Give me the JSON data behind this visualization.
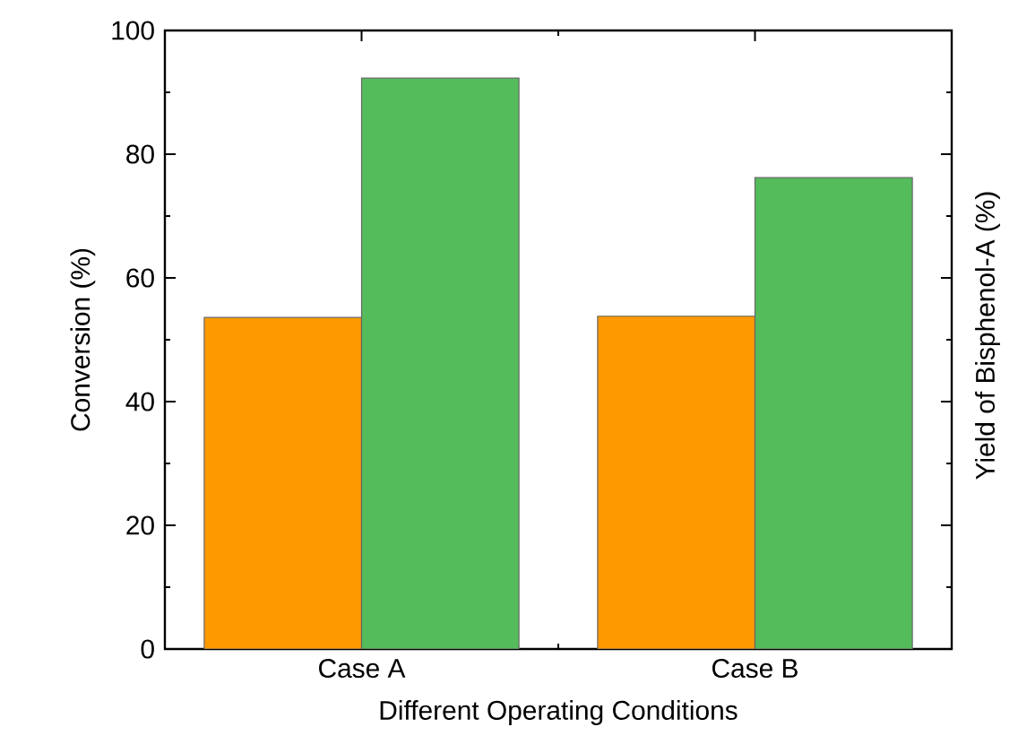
{
  "chart_data": {
    "type": "bar",
    "categories": [
      "Case A",
      "Case B"
    ],
    "xlabel": "Different Operating Conditions",
    "ylabel": "Conversion (%)",
    "y2label": "Yield of Bisphenol-A (%)",
    "series": [
      {
        "color": "#ff9900",
        "values": [
          53.6,
          53.8
        ]
      },
      {
        "color": "#54bc5a",
        "values": [
          92.3,
          76.2
        ]
      }
    ],
    "ylim": [
      0,
      100
    ],
    "yticks": [
      0,
      20,
      40,
      60,
      80,
      100
    ],
    "grid": false
  }
}
